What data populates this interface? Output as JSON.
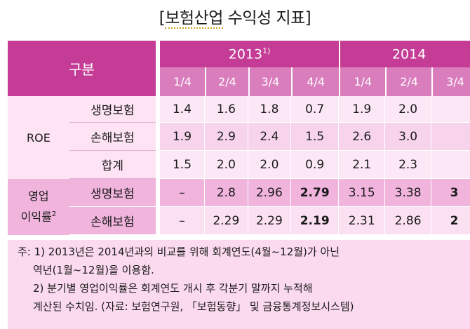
{
  "title": {
    "open": "[",
    "text": "보험산업",
    "rest": " 수익성 지표]"
  },
  "header": {
    "corner": "구분",
    "years": [
      {
        "year": "2013",
        "sup": "1)"
      },
      {
        "year": "2014",
        "sup": ""
      }
    ],
    "quarters": [
      "1/4",
      "2/4",
      "3/4",
      "4/4",
      "1/4",
      "2/4",
      "3/4"
    ]
  },
  "roe": {
    "label": "ROE",
    "rows": [
      {
        "label": "생명보험",
        "values": [
          "1.4",
          "1.6",
          "1.8",
          "0.7",
          "1.9",
          "2.0",
          ""
        ]
      },
      {
        "label": "손해보험",
        "values": [
          "1.9",
          "2.9",
          "2.4",
          "1.5",
          "2.6",
          "3.0",
          ""
        ]
      },
      {
        "label": "합계",
        "values": [
          "1.5",
          "2.0",
          "2.0",
          "0.9",
          "2.1",
          "2.3",
          ""
        ]
      }
    ]
  },
  "op": {
    "label_line1": "영업",
    "label_line2": "이익률",
    "label_sup": "2",
    "rows": [
      {
        "label": "생명보험",
        "values": [
          "–",
          "2.8",
          "2.96",
          "2.79",
          "3.15",
          "3.38",
          "3"
        ]
      },
      {
        "label": "손해보험",
        "values": [
          "–",
          "2.29",
          "2.29",
          "2.19",
          "2.31",
          "2.86",
          "2"
        ]
      }
    ]
  },
  "notes": {
    "line1": "주: 1) 2013년은 2014년과의 비교를 위해 회계연도(4월~12월)가 아닌",
    "line2": "역년(1월~12월)을 이용함.",
    "line3": "2) 분기별 영업이익률은 회계연도 개시 후 각분기 말까지 누적해",
    "line4": "계산된 수치임. (자료: 보험연구원, 「보험동향」 및 금융통계정보시스템)"
  }
}
